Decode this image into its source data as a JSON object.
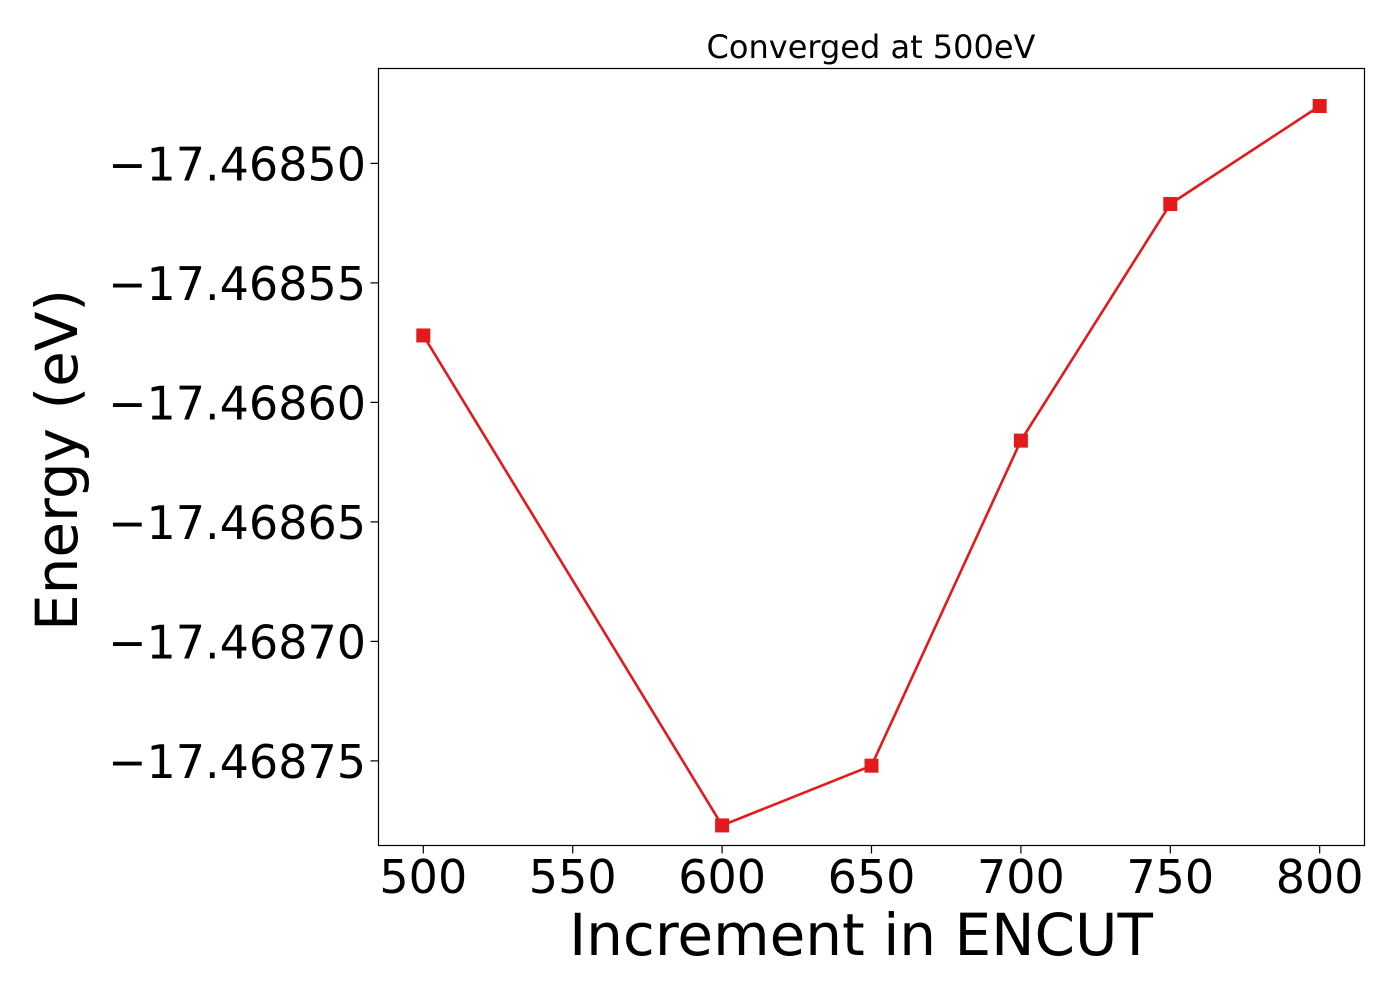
{
  "chart_data": {
    "type": "line",
    "title": "Converged at 500eV",
    "xlabel": "Increment in ENCUT",
    "ylabel": "Energy (eV)",
    "x": [
      500,
      600,
      650,
      700,
      750,
      800
    ],
    "series": [
      {
        "values": [
          -17.468572,
          -17.468777,
          -17.468752,
          -17.468616,
          -17.468517,
          -17.468476
        ],
        "color": "#e31a1c",
        "marker": "square"
      }
    ],
    "xticks": [
      500,
      550,
      600,
      650,
      700,
      750,
      800
    ],
    "xtick_labels": [
      "500",
      "550",
      "600",
      "650",
      "700",
      "750",
      "800"
    ],
    "yticks": [
      -17.4685,
      -17.46855,
      -17.4686,
      -17.46865,
      -17.4687,
      -17.46875
    ],
    "ytick_labels": [
      "−17.46850",
      "−17.46855",
      "−17.46860",
      "−17.46865",
      "−17.46870",
      "−17.46875"
    ],
    "xlim": [
      485,
      815
    ],
    "ylim": [
      -17.4687854,
      -17.4684603
    ],
    "grid": false,
    "legend": "none"
  }
}
